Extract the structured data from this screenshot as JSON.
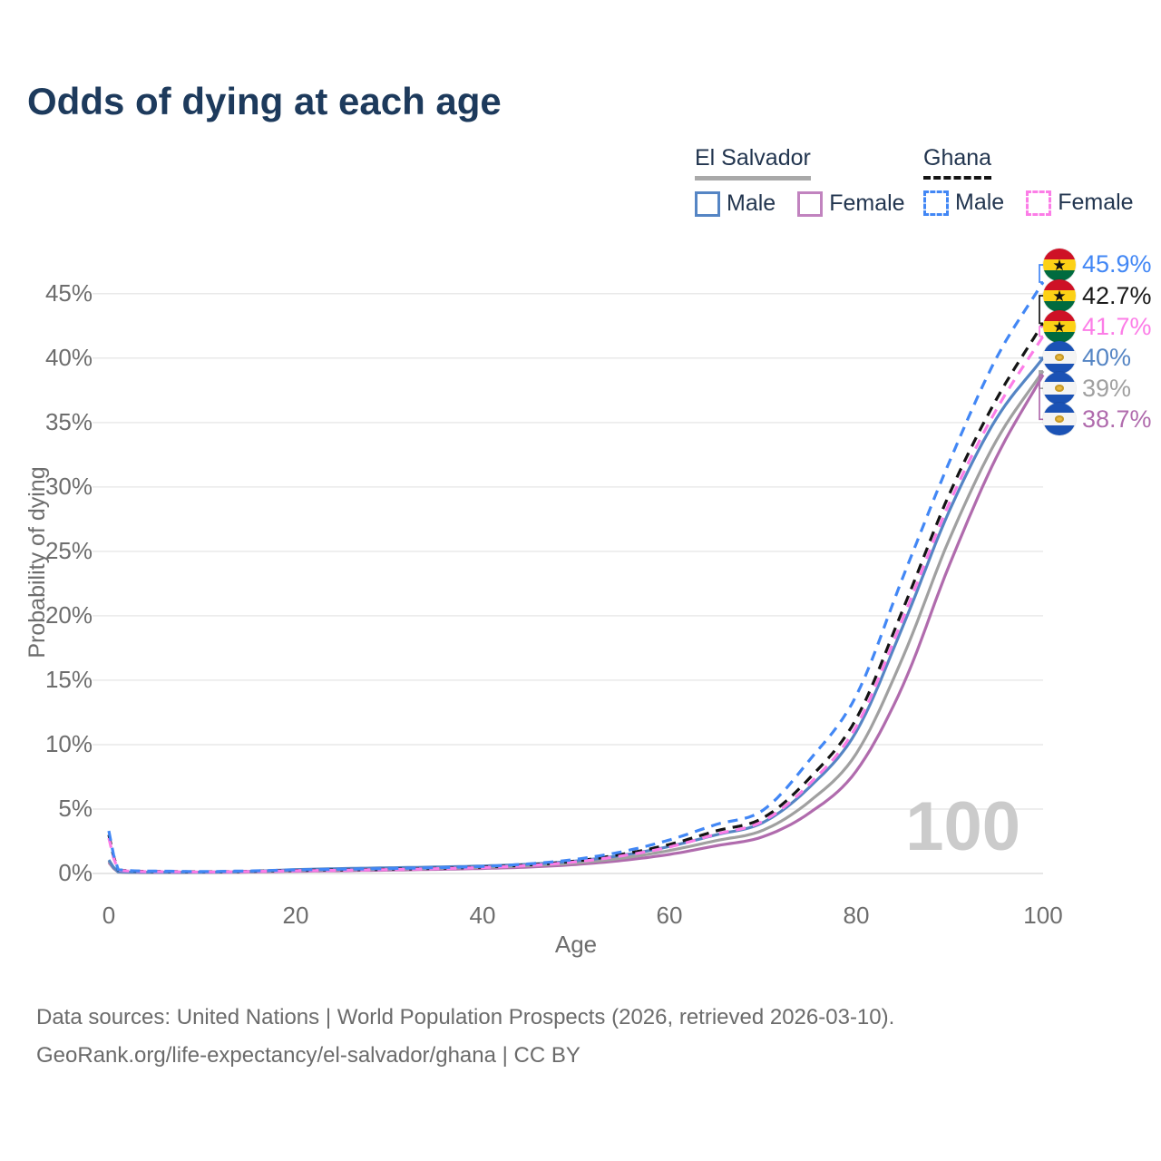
{
  "title": "Odds of dying at each age",
  "legend": {
    "groups": [
      {
        "country": "El Salvador",
        "line_style": "solid",
        "underline_color": "#a9a9a9",
        "items": [
          {
            "label": "Male",
            "color": "#5585c4"
          },
          {
            "label": "Female",
            "color": "#c183bf"
          }
        ]
      },
      {
        "country": "Ghana",
        "line_style": "dashed",
        "underline_color": "#141414",
        "items": [
          {
            "label": "Male",
            "color": "#4287f5"
          },
          {
            "label": "Female",
            "color": "#fc7de7"
          }
        ]
      }
    ]
  },
  "chart_data": {
    "type": "line",
    "title": "Odds of dying at each age",
    "xlabel": "Age",
    "ylabel": "Probability of dying",
    "xlim": [
      0,
      100
    ],
    "ylim": [
      0,
      46.5
    ],
    "x_ticks": [
      0,
      20,
      40,
      60,
      80,
      100
    ],
    "y_ticks": [
      0,
      5,
      10,
      15,
      20,
      25,
      30,
      35,
      40,
      45
    ],
    "y_tick_suffix": "%",
    "grid": true,
    "legend_position": "top-right",
    "watermark": "100",
    "x": [
      0,
      1,
      5,
      10,
      15,
      20,
      25,
      30,
      35,
      40,
      45,
      50,
      55,
      60,
      65,
      70,
      75,
      80,
      85,
      90,
      95,
      100
    ],
    "series": [
      {
        "name": "Ghana — Male",
        "country": "Ghana",
        "sex": "male",
        "flag": "ghana",
        "color": "#4287f5",
        "dash": "dashed",
        "values": [
          3.3,
          0.3,
          0.18,
          0.15,
          0.2,
          0.28,
          0.33,
          0.38,
          0.45,
          0.55,
          0.75,
          1.1,
          1.7,
          2.6,
          3.8,
          4.9,
          8.8,
          13.8,
          23.0,
          32.0,
          40.0,
          45.9
        ],
        "end_label": "45.9%",
        "end_value": 45.9,
        "end_label_color": "#4287f5"
      },
      {
        "name": "Ghana — Both sexes",
        "country": "Ghana",
        "sex": "both",
        "flag": "ghana",
        "color": "#141414",
        "dash": "dashed",
        "values": [
          3.0,
          0.28,
          0.16,
          0.13,
          0.17,
          0.24,
          0.28,
          0.33,
          0.4,
          0.5,
          0.67,
          0.97,
          1.5,
          2.25,
          3.3,
          4.3,
          7.4,
          12.0,
          20.5,
          29.5,
          36.8,
          42.7
        ],
        "end_label": "42.7%",
        "end_value": 42.7,
        "end_label_color": "#1a1a1a"
      },
      {
        "name": "Ghana — Female",
        "country": "Ghana",
        "sex": "female",
        "flag": "ghana",
        "color": "#fc7de7",
        "dash": "dashed",
        "values": [
          2.75,
          0.26,
          0.14,
          0.12,
          0.15,
          0.21,
          0.25,
          0.3,
          0.37,
          0.46,
          0.62,
          0.9,
          1.38,
          2.05,
          3.05,
          4.05,
          6.95,
          11.4,
          19.8,
          28.8,
          36.0,
          41.7
        ],
        "end_label": "41.7%",
        "end_value": 41.7,
        "end_label_color": "#fc7de7"
      },
      {
        "name": "El Salvador — Male",
        "country": "El Salvador",
        "sex": "male",
        "flag": "el-salvador",
        "color": "#5585c4",
        "dash": "solid",
        "values": [
          1.05,
          0.13,
          0.09,
          0.1,
          0.16,
          0.3,
          0.38,
          0.44,
          0.5,
          0.58,
          0.72,
          0.97,
          1.42,
          2.1,
          3.0,
          3.95,
          6.7,
          11.0,
          19.2,
          28.2,
          35.3,
          40.0
        ],
        "end_label": "40%",
        "end_value": 40.0,
        "end_label_color": "#5585c4"
      },
      {
        "name": "El Salvador — Both sexes",
        "country": "El Salvador",
        "sex": "both",
        "flag": "el-salvador",
        "color": "#a0a0a0",
        "dash": "solid",
        "values": [
          0.95,
          0.12,
          0.08,
          0.09,
          0.13,
          0.23,
          0.29,
          0.34,
          0.4,
          0.48,
          0.6,
          0.82,
          1.2,
          1.78,
          2.55,
          3.35,
          5.6,
          9.3,
          16.8,
          26.0,
          33.6,
          39.0
        ],
        "end_label": "39%",
        "end_value": 39.0,
        "end_label_color": "#a0a0a0"
      },
      {
        "name": "El Salvador — Female",
        "country": "El Salvador",
        "sex": "female",
        "flag": "el-salvador",
        "color": "#b06bad",
        "dash": "solid",
        "values": [
          0.85,
          0.11,
          0.07,
          0.08,
          0.11,
          0.17,
          0.21,
          0.26,
          0.32,
          0.39,
          0.5,
          0.7,
          1.02,
          1.48,
          2.15,
          2.85,
          4.7,
          7.95,
          14.6,
          24.0,
          32.3,
          38.7
        ],
        "end_label": "38.7%",
        "end_value": 38.7,
        "end_label_color": "#b06bad"
      }
    ]
  },
  "footer": {
    "line1": "Data sources: United Nations | World Population Prospects (2026, retrieved 2026-03-10).",
    "line2": "GeoRank.org/life-expectancy/el-salvador/ghana | CC BY"
  }
}
